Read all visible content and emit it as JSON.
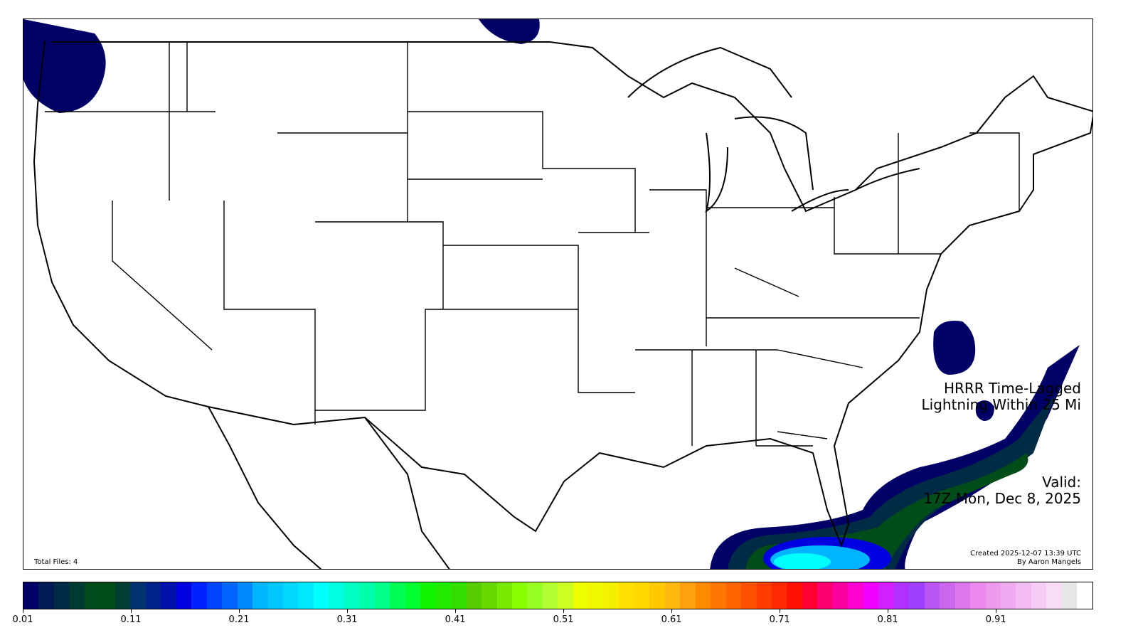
{
  "map": {
    "title_line1": "HRRR Time-Lagged",
    "title_line2": "Lightning Within 25 Mi",
    "valid_label": "Valid:",
    "valid_time": "17Z Mon, Dec 8, 2025",
    "created": "Created 2025-12-07 13:39 UTC",
    "author": "By Aaron Mangels",
    "total_files": "Total Files: 4",
    "region": "CONUS"
  },
  "colorbar": {
    "min": 0.01,
    "max": 1.0,
    "ticks": [
      "0.01",
      "0.11",
      "0.21",
      "0.31",
      "0.41",
      "0.51",
      "0.61",
      "0.71",
      "0.81",
      "0.91"
    ],
    "colors": [
      "#000066",
      "#001a55",
      "#002b44",
      "#003a33",
      "#004a1c",
      "#004d1a",
      "#003d33",
      "#003370",
      "#002288",
      "#0011aa",
      "#0000e0",
      "#0022ff",
      "#0044ff",
      "#0066ff",
      "#0088ff",
      "#00b4ff",
      "#00c8ff",
      "#00d8ff",
      "#00e8ff",
      "#00ffff",
      "#00ffe0",
      "#00ffc4",
      "#00ffaa",
      "#00ff88",
      "#00ff55",
      "#00ff30",
      "#11f500",
      "#22ea00",
      "#33dd00",
      "#55cc00",
      "#66d800",
      "#77ea00",
      "#88ff00",
      "#99ff22",
      "#b4ff33",
      "#ccff22",
      "#eeff00",
      "#f2f800",
      "#f5f000",
      "#ffe000",
      "#ffd800",
      "#ffc800",
      "#ffb810",
      "#ffa010",
      "#ff8c00",
      "#ff7700",
      "#ff6400",
      "#ff5000",
      "#ff3c00",
      "#ff2800",
      "#ff1000",
      "#ff0030",
      "#ff0070",
      "#ff00a0",
      "#ff00d0",
      "#f000ff",
      "#d020ff",
      "#b030ff",
      "#a040ff",
      "#bb55f5",
      "#cc66ee",
      "#dd77ee",
      "#ee88ee",
      "#ee99ee",
      "#f0aaf0",
      "#f2bbf2",
      "#f6ccf6",
      "#f8ddf8",
      "#e6e6e6",
      "#ffffff"
    ]
  }
}
